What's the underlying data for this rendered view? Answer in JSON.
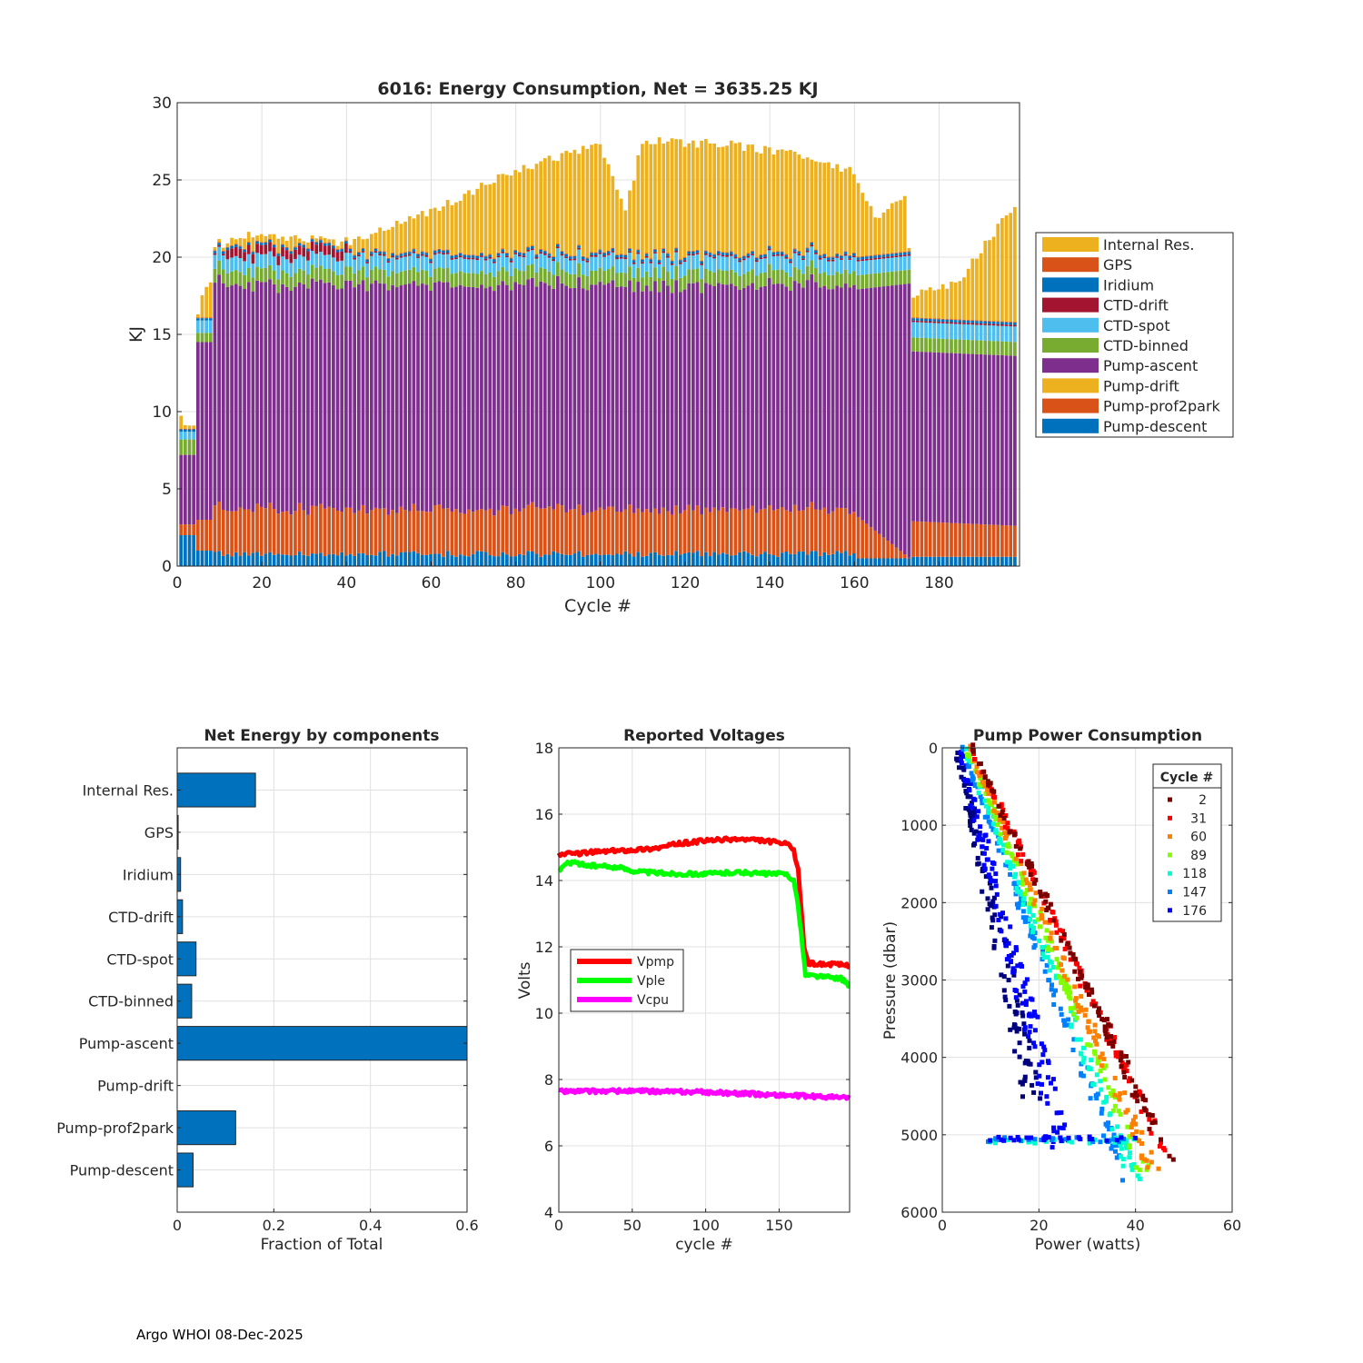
{
  "footer": "Argo WHOI 08-Dec-2025",
  "colors": {
    "pump_descent": "#0072BD",
    "pump_prof2park": "#D95319",
    "pump_drift": "#EDB120",
    "pump_ascent": "#7E2F8E",
    "ctd_binned": "#77AC30",
    "ctd_spot": "#4DBEEE",
    "ctd_drift": "#A2142F",
    "iridium": "#0072BD",
    "gps": "#D95319",
    "internal_res": "#EDB120"
  },
  "chart_data": [
    {
      "id": "energy",
      "type": "bar",
      "stacked": true,
      "title": "6016: Energy Consumption,  Net = 3635.25 KJ",
      "xlabel": "Cycle #",
      "ylabel": "KJ",
      "xlim": [
        0,
        199
      ],
      "ylim": [
        0,
        30
      ],
      "xticks": [
        0,
        20,
        40,
        60,
        80,
        100,
        120,
        140,
        160,
        180
      ],
      "yticks": [
        0,
        5,
        10,
        15,
        20,
        25,
        30
      ],
      "grid": true,
      "legend_position": "right",
      "legend": [
        "Internal Res.",
        "GPS",
        "Iridium",
        "CTD-drift",
        "CTD-spot",
        "CTD-binned",
        "Pump-ascent",
        "Pump-drift",
        "Pump-prof2park",
        "Pump-descent"
      ],
      "cycles": "1-198",
      "series_profile": {
        "Pump-descent": "~2.0 for cycles 1-4, ~1.0 cycles 5-8, ~0.6 thereafter",
        "Pump-prof2park": "~0.8 early, ~3.0 cycles 10-160, falling to ~0 near 170, ~2.3 after 174",
        "Pump-ascent": "~5 for cycles 1-4, ~14 at cycles 5-9, ~14.5-15 cycles 10-172, ~11 after 174",
        "CTD-binned": "~0.8-1.2",
        "CTD-spot": "~0.8-1.0",
        "CTD-drift": "~0.2-0.8 in cycles 12-40",
        "Internal Res.": "~1 early, rising to ~6-7 at cycles 100-140, ~1.5 at 174 rising to ~7 at 198",
        "key_totals": [
          [
            1,
            9.5
          ],
          [
            4,
            7.8
          ],
          [
            6,
            17.4
          ],
          [
            12,
            21.1
          ],
          [
            20,
            21.5
          ],
          [
            40,
            20.9
          ],
          [
            60,
            23.0
          ],
          [
            80,
            25.6
          ],
          [
            100,
            27.3
          ],
          [
            106,
            23.0
          ],
          [
            110,
            27.5
          ],
          [
            130,
            27.3
          ],
          [
            150,
            26.5
          ],
          [
            160,
            25.5
          ],
          [
            165,
            22.5
          ],
          [
            172,
            23.8
          ],
          [
            174,
            17.6
          ],
          [
            185,
            18.5
          ],
          [
            198,
            23.5
          ]
        ]
      }
    },
    {
      "id": "net",
      "type": "bar",
      "orientation": "horizontal",
      "title": "Net Energy by components",
      "xlabel": "Fraction of Total",
      "xlim": [
        0,
        0.6
      ],
      "xticks": [
        0,
        0.2,
        0.4,
        0.6
      ],
      "categories": [
        "Internal Res.",
        "GPS",
        "Iridium",
        "CTD-drift",
        "CTD-spot",
        "CTD-binned",
        "Pump-ascent",
        "Pump-drift",
        "Pump-prof2park",
        "Pump-descent"
      ],
      "values": [
        0.162,
        0.002,
        0.007,
        0.011,
        0.039,
        0.03,
        0.615,
        0.0,
        0.121,
        0.033
      ],
      "grid": true
    },
    {
      "id": "volts",
      "type": "line",
      "title": "Reported Voltages",
      "xlabel": "cycle #",
      "ylabel": "Volts",
      "xlim": [
        0,
        198
      ],
      "ylim": [
        4,
        18
      ],
      "xticks": [
        0,
        50,
        100,
        150
      ],
      "yticks": [
        4,
        6,
        8,
        10,
        12,
        14,
        16,
        18
      ],
      "grid": true,
      "legend_position": "left",
      "series": [
        {
          "name": "Vpmp",
          "color": "#FF0000",
          "points": [
            [
              0,
              14.8
            ],
            [
              10,
              14.8
            ],
            [
              20,
              14.85
            ],
            [
              40,
              14.9
            ],
            [
              60,
              14.95
            ],
            [
              70,
              15.0
            ],
            [
              80,
              15.1
            ],
            [
              100,
              15.2
            ],
            [
              120,
              15.25
            ],
            [
              140,
              15.2
            ],
            [
              155,
              15.1
            ],
            [
              160,
              14.9
            ],
            [
              163,
              14.3
            ],
            [
              165,
              13.2
            ],
            [
              167,
              12.0
            ],
            [
              170,
              11.5
            ],
            [
              198,
              11.45
            ]
          ]
        },
        {
          "name": "Vple",
          "color": "#00FF00",
          "points": [
            [
              0,
              14.3
            ],
            [
              5,
              14.5
            ],
            [
              10,
              14.55
            ],
            [
              20,
              14.45
            ],
            [
              40,
              14.4
            ],
            [
              50,
              14.3
            ],
            [
              60,
              14.25
            ],
            [
              80,
              14.2
            ],
            [
              100,
              14.2
            ],
            [
              120,
              14.25
            ],
            [
              140,
              14.2
            ],
            [
              155,
              14.2
            ],
            [
              160,
              14.0
            ],
            [
              163,
              13.2
            ],
            [
              166,
              12.0
            ],
            [
              168,
              11.15
            ],
            [
              180,
              11.1
            ],
            [
              192,
              11.05
            ],
            [
              196,
              10.9
            ],
            [
              198,
              10.8
            ]
          ]
        },
        {
          "name": "Vcpu",
          "color": "#FF00FF",
          "points": [
            [
              0,
              7.65
            ],
            [
              50,
              7.65
            ],
            [
              100,
              7.62
            ],
            [
              140,
              7.55
            ],
            [
              198,
              7.45
            ]
          ]
        }
      ]
    },
    {
      "id": "pump",
      "type": "scatter",
      "title": "Pump Power Consumption",
      "xlabel": "Power (watts)",
      "ylabel": "Pressure (dbar)",
      "xlim": [
        0,
        60
      ],
      "ylim": [
        0,
        6000
      ],
      "y_reversed": true,
      "xticks": [
        0,
        20,
        40,
        60
      ],
      "yticks": [
        0,
        1000,
        2000,
        3000,
        4000,
        5000,
        6000
      ],
      "grid": true,
      "legend_title": "Cycle #",
      "legend_position": "top-right",
      "legend": [
        {
          "label": "2",
          "color": "#800000"
        },
        {
          "label": "31",
          "color": "#FF0000"
        },
        {
          "label": "60",
          "color": "#FF8000"
        },
        {
          "label": "89",
          "color": "#80FF00"
        },
        {
          "label": "118",
          "color": "#00FFD0"
        },
        {
          "label": "147",
          "color": "#0080FF"
        },
        {
          "label": "176",
          "color": "#0000FF"
        }
      ],
      "trends": [
        {
          "color": "#7a0000",
          "from": [
            6,
            0
          ],
          "to": [
            47,
            5300
          ]
        },
        {
          "color": "#FF0000",
          "from": [
            6,
            0
          ],
          "to": [
            46,
            5200
          ]
        },
        {
          "color": "#FF8000",
          "from": [
            5.5,
            0
          ],
          "to": [
            44,
            5500
          ]
        },
        {
          "color": "#80FF00",
          "from": [
            5,
            0
          ],
          "to": [
            42,
            5500
          ]
        },
        {
          "color": "#00FFD0",
          "from": [
            4.5,
            0
          ],
          "to": [
            40,
            5600
          ]
        },
        {
          "color": "#0080FF",
          "from": [
            4,
            0
          ],
          "to": [
            38,
            5600
          ]
        },
        {
          "color": "#0000FF",
          "from": [
            3.5,
            0
          ],
          "to": [
            25,
            5200
          ]
        },
        {
          "color": "#00007F",
          "from": [
            3,
            0
          ],
          "to": [
            19,
            4500
          ]
        }
      ],
      "park_branch": {
        "pressure": 5080,
        "x_from": 9,
        "x_to": 40,
        "colors": [
          "#00FFD0",
          "#0080FF",
          "#0000FF"
        ]
      }
    }
  ]
}
